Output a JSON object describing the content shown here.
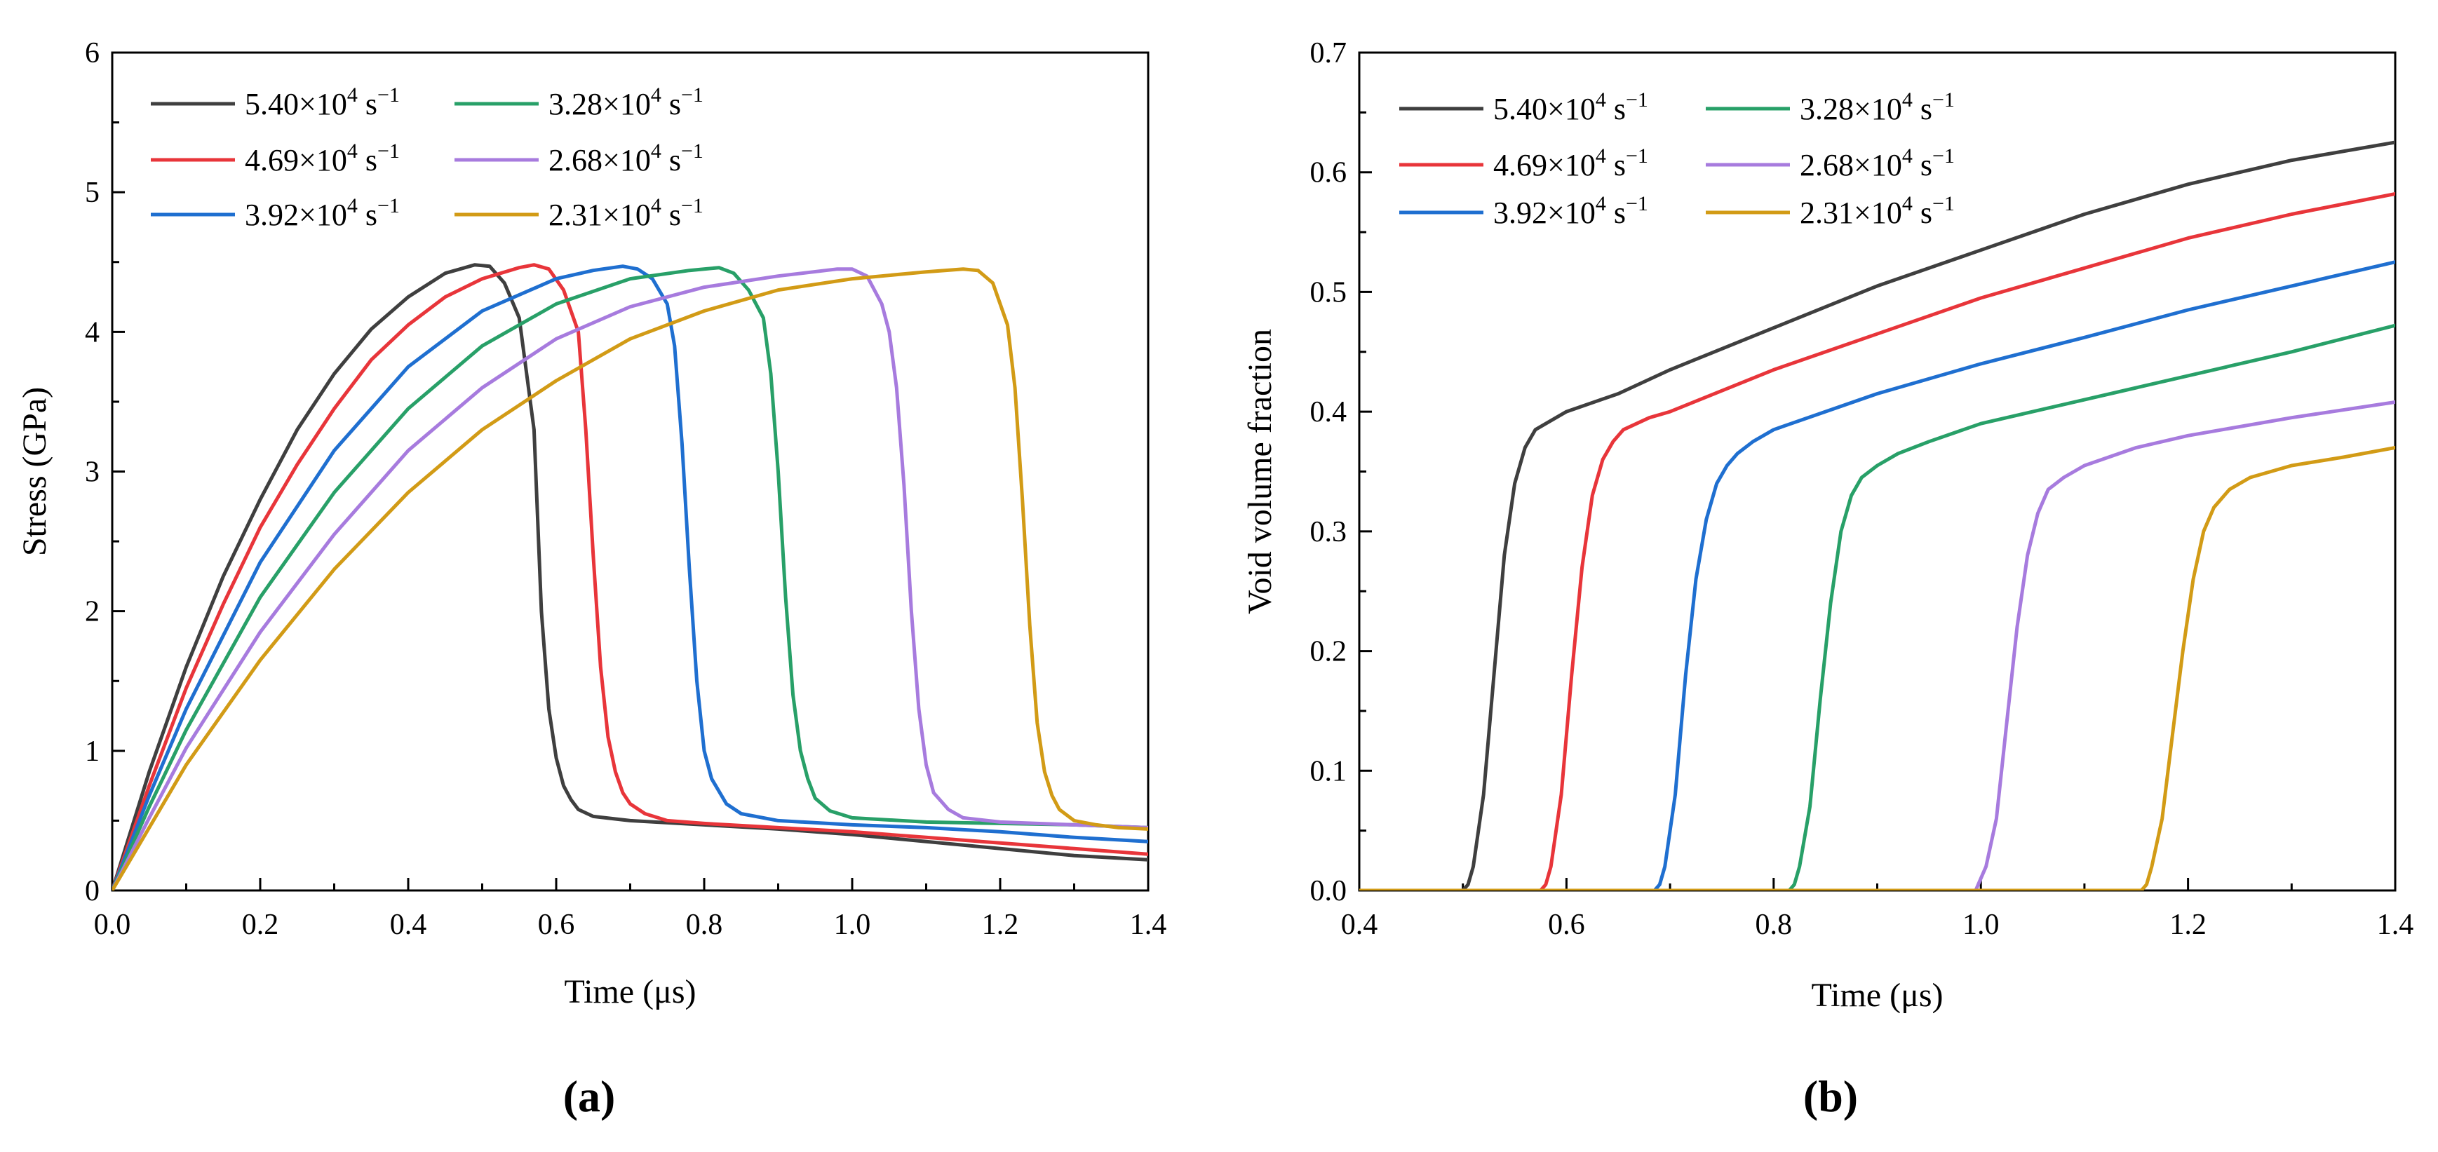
{
  "figure": {
    "legend_unit": "×10",
    "legend_exp": "4",
    "legend_suffix": "s",
    "legend_suffix_exp": "−1"
  },
  "chart_data": [
    {
      "type": "line",
      "panel_label": "(a)",
      "title": "",
      "xlabel": "Time (μs)",
      "ylabel": "Stress (GPa)",
      "xlim": [
        0,
        1.4
      ],
      "ylim": [
        0,
        6
      ],
      "xticks": [
        "0.0",
        "0.2",
        "0.4",
        "0.6",
        "0.8",
        "1.0",
        "1.2",
        "1.4"
      ],
      "yticks": [
        "0",
        "1",
        "2",
        "3",
        "4",
        "5",
        "6"
      ],
      "legend": "top-left",
      "series": [
        {
          "name": "5.40",
          "color": "#3f3f3f",
          "x": [
            0,
            0.05,
            0.1,
            0.15,
            0.2,
            0.25,
            0.3,
            0.35,
            0.4,
            0.45,
            0.49,
            0.51,
            0.53,
            0.55,
            0.57,
            0.58,
            0.59,
            0.6,
            0.61,
            0.62,
            0.63,
            0.65,
            0.7,
            0.8,
            0.9,
            1.0,
            1.1,
            1.2,
            1.3,
            1.4
          ],
          "values": [
            0,
            0.85,
            1.6,
            2.25,
            2.8,
            3.3,
            3.7,
            4.02,
            4.25,
            4.42,
            4.48,
            4.47,
            4.35,
            4.1,
            3.3,
            2.0,
            1.3,
            0.95,
            0.75,
            0.65,
            0.58,
            0.53,
            0.5,
            0.47,
            0.44,
            0.4,
            0.35,
            0.3,
            0.25,
            0.22
          ]
        },
        {
          "name": "4.69",
          "color": "#e8353a",
          "x": [
            0,
            0.05,
            0.1,
            0.15,
            0.2,
            0.25,
            0.3,
            0.35,
            0.4,
            0.45,
            0.5,
            0.55,
            0.57,
            0.59,
            0.61,
            0.63,
            0.64,
            0.65,
            0.66,
            0.67,
            0.68,
            0.69,
            0.7,
            0.72,
            0.75,
            0.8,
            0.9,
            1.0,
            1.1,
            1.2,
            1.3,
            1.4
          ],
          "values": [
            0,
            0.75,
            1.45,
            2.05,
            2.6,
            3.05,
            3.45,
            3.8,
            4.05,
            4.25,
            4.38,
            4.46,
            4.48,
            4.45,
            4.3,
            4.0,
            3.3,
            2.4,
            1.6,
            1.1,
            0.85,
            0.7,
            0.62,
            0.55,
            0.5,
            0.48,
            0.45,
            0.42,
            0.38,
            0.34,
            0.3,
            0.26
          ]
        },
        {
          "name": "3.92",
          "color": "#1f6fd0",
          "x": [
            0,
            0.05,
            0.1,
            0.2,
            0.3,
            0.4,
            0.5,
            0.6,
            0.65,
            0.69,
            0.71,
            0.73,
            0.75,
            0.76,
            0.77,
            0.78,
            0.79,
            0.8,
            0.81,
            0.83,
            0.85,
            0.9,
            1.0,
            1.1,
            1.2,
            1.3,
            1.4
          ],
          "values": [
            0,
            0.68,
            1.3,
            2.35,
            3.15,
            3.75,
            4.15,
            4.38,
            4.44,
            4.47,
            4.45,
            4.38,
            4.2,
            3.9,
            3.2,
            2.3,
            1.5,
            1.0,
            0.8,
            0.62,
            0.55,
            0.5,
            0.47,
            0.45,
            0.42,
            0.38,
            0.35
          ]
        },
        {
          "name": "3.28",
          "color": "#28a068",
          "x": [
            0,
            0.05,
            0.1,
            0.2,
            0.3,
            0.4,
            0.5,
            0.6,
            0.7,
            0.78,
            0.82,
            0.84,
            0.86,
            0.88,
            0.89,
            0.9,
            0.91,
            0.92,
            0.93,
            0.94,
            0.95,
            0.97,
            1.0,
            1.1,
            1.2,
            1.3,
            1.4
          ],
          "values": [
            0,
            0.6,
            1.15,
            2.1,
            2.85,
            3.45,
            3.9,
            4.2,
            4.38,
            4.44,
            4.46,
            4.42,
            4.3,
            4.1,
            3.7,
            3.0,
            2.1,
            1.4,
            1.0,
            0.8,
            0.66,
            0.57,
            0.52,
            0.49,
            0.48,
            0.47,
            0.45
          ]
        },
        {
          "name": "2.68",
          "color": "#a77bde",
          "x": [
            0,
            0.05,
            0.1,
            0.2,
            0.3,
            0.4,
            0.5,
            0.6,
            0.7,
            0.8,
            0.9,
            0.98,
            1.0,
            1.02,
            1.04,
            1.05,
            1.06,
            1.07,
            1.08,
            1.09,
            1.1,
            1.11,
            1.13,
            1.15,
            1.2,
            1.3,
            1.4
          ],
          "values": [
            0,
            0.52,
            1.02,
            1.85,
            2.55,
            3.15,
            3.6,
            3.95,
            4.18,
            4.32,
            4.4,
            4.45,
            4.45,
            4.4,
            4.2,
            4.0,
            3.6,
            2.9,
            2.0,
            1.3,
            0.9,
            0.7,
            0.58,
            0.52,
            0.49,
            0.47,
            0.45
          ]
        },
        {
          "name": "2.31",
          "color": "#d29b16",
          "x": [
            0,
            0.05,
            0.1,
            0.2,
            0.3,
            0.4,
            0.5,
            0.6,
            0.7,
            0.8,
            0.9,
            1.0,
            1.1,
            1.15,
            1.17,
            1.19,
            1.2,
            1.21,
            1.22,
            1.23,
            1.24,
            1.25,
            1.26,
            1.27,
            1.28,
            1.3,
            1.33,
            1.36,
            1.4
          ],
          "values": [
            0,
            0.45,
            0.9,
            1.65,
            2.3,
            2.85,
            3.3,
            3.65,
            3.95,
            4.15,
            4.3,
            4.38,
            4.43,
            4.45,
            4.44,
            4.35,
            4.2,
            4.05,
            3.6,
            2.8,
            1.9,
            1.2,
            0.85,
            0.68,
            0.58,
            0.5,
            0.47,
            0.45,
            0.44
          ]
        }
      ]
    },
    {
      "type": "line",
      "panel_label": "(b)",
      "title": "",
      "xlabel": "Time (μs)",
      "ylabel": "Void volume fraction",
      "xlim": [
        0.4,
        1.4
      ],
      "ylim": [
        0,
        0.7
      ],
      "xticks": [
        "0.4",
        "0.6",
        "0.8",
        "1.0",
        "1.2",
        "1.4"
      ],
      "yticks": [
        "0.0",
        "0.1",
        "0.2",
        "0.3",
        "0.4",
        "0.5",
        "0.6",
        "0.7"
      ],
      "legend": "top-left",
      "series": [
        {
          "name": "5.40",
          "color": "#3f3f3f",
          "x": [
            0.4,
            0.5,
            0.505,
            0.51,
            0.52,
            0.53,
            0.54,
            0.55,
            0.56,
            0.57,
            0.58,
            0.6,
            0.65,
            0.7,
            0.8,
            0.9,
            1.0,
            1.1,
            1.2,
            1.3,
            1.4
          ],
          "values": [
            0,
            0,
            0.005,
            0.02,
            0.08,
            0.18,
            0.28,
            0.34,
            0.37,
            0.385,
            0.39,
            0.4,
            0.415,
            0.435,
            0.47,
            0.505,
            0.535,
            0.565,
            0.59,
            0.61,
            0.625
          ]
        },
        {
          "name": "4.69",
          "color": "#e8353a",
          "x": [
            0.4,
            0.575,
            0.58,
            0.585,
            0.595,
            0.605,
            0.615,
            0.625,
            0.635,
            0.645,
            0.655,
            0.68,
            0.7,
            0.8,
            0.9,
            1.0,
            1.1,
            1.2,
            1.3,
            1.4
          ],
          "values": [
            0,
            0,
            0.005,
            0.02,
            0.08,
            0.18,
            0.27,
            0.33,
            0.36,
            0.375,
            0.385,
            0.395,
            0.4,
            0.435,
            0.465,
            0.495,
            0.52,
            0.545,
            0.565,
            0.582
          ]
        },
        {
          "name": "3.92",
          "color": "#1f6fd0",
          "x": [
            0.4,
            0.685,
            0.69,
            0.695,
            0.705,
            0.715,
            0.725,
            0.735,
            0.745,
            0.755,
            0.765,
            0.78,
            0.8,
            0.9,
            1.0,
            1.1,
            1.2,
            1.3,
            1.4
          ],
          "values": [
            0,
            0,
            0.005,
            0.02,
            0.08,
            0.18,
            0.26,
            0.31,
            0.34,
            0.355,
            0.365,
            0.375,
            0.385,
            0.415,
            0.44,
            0.462,
            0.485,
            0.505,
            0.525
          ]
        },
        {
          "name": "3.28",
          "color": "#28a068",
          "x": [
            0.4,
            0.815,
            0.82,
            0.825,
            0.835,
            0.845,
            0.855,
            0.865,
            0.875,
            0.885,
            0.9,
            0.92,
            0.95,
            1.0,
            1.1,
            1.2,
            1.3,
            1.4
          ],
          "values": [
            0,
            0,
            0.005,
            0.02,
            0.07,
            0.16,
            0.24,
            0.3,
            0.33,
            0.345,
            0.355,
            0.365,
            0.375,
            0.39,
            0.41,
            0.43,
            0.45,
            0.472
          ]
        },
        {
          "name": "2.68",
          "color": "#a77bde",
          "x": [
            0.4,
            0.995,
            1.0,
            1.005,
            1.015,
            1.025,
            1.035,
            1.045,
            1.055,
            1.065,
            1.08,
            1.1,
            1.15,
            1.2,
            1.3,
            1.4
          ],
          "values": [
            0,
            0,
            0.01,
            0.02,
            0.06,
            0.14,
            0.22,
            0.28,
            0.315,
            0.335,
            0.345,
            0.355,
            0.37,
            0.38,
            0.395,
            0.408
          ]
        },
        {
          "name": "2.31",
          "color": "#d29b16",
          "x": [
            0.4,
            1.155,
            1.16,
            1.165,
            1.175,
            1.185,
            1.195,
            1.205,
            1.215,
            1.225,
            1.24,
            1.26,
            1.3,
            1.35,
            1.4
          ],
          "values": [
            0,
            0,
            0.005,
            0.02,
            0.06,
            0.13,
            0.2,
            0.26,
            0.3,
            0.32,
            0.335,
            0.345,
            0.355,
            0.362,
            0.37
          ]
        }
      ]
    }
  ]
}
